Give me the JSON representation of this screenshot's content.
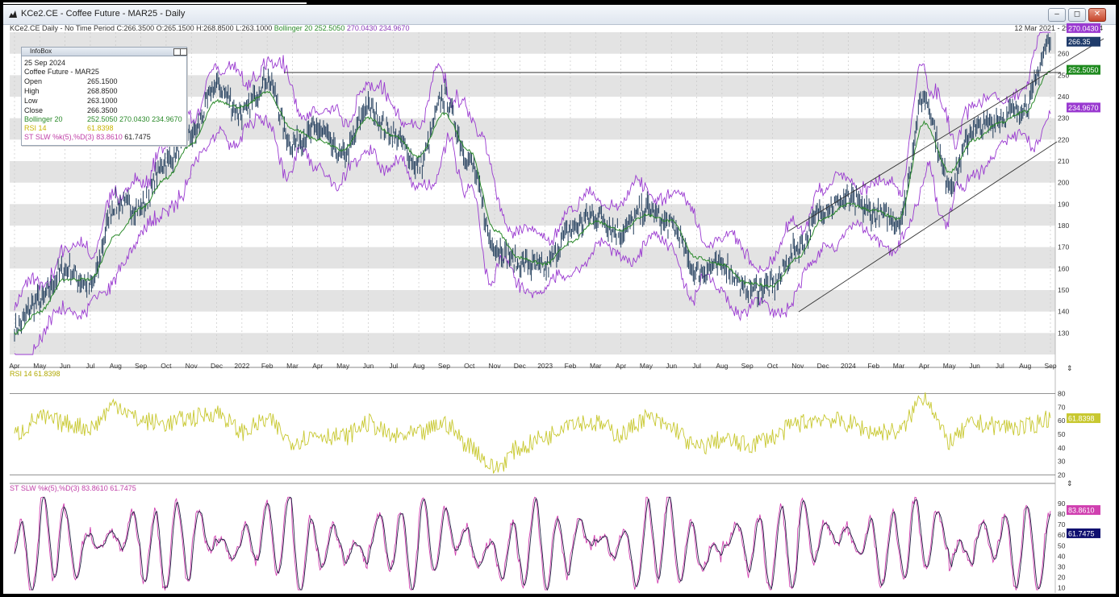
{
  "window": {
    "title": "KCe2.CE - Coffee Future - MAR25 - Daily",
    "buttons": {
      "minimize": "–",
      "restore": "◻",
      "close": "✕"
    }
  },
  "header": {
    "line_main": "KCe2.CE Daily  -  No Time Period   C:266.3500 O:265.1500 H:268.8500 L:263.1000",
    "bollinger_label": "Bollinger 20",
    "bollinger_mid": "252.5050",
    "bollinger_upper": "270.0430",
    "bollinger_lower": "234.9670",
    "date_range": "12 Mar 2021  -  25 Sep 2024"
  },
  "infobox": {
    "title": "InfoBox",
    "date": "25 Sep 2024",
    "instrument": "Coffee Future - MAR25",
    "rows": [
      {
        "label": "Open",
        "value": "265.1500"
      },
      {
        "label": "High",
        "value": "268.8500"
      },
      {
        "label": "Low",
        "value": "263.1000"
      },
      {
        "label": "Close",
        "value": "266.3500"
      }
    ],
    "bollinger": {
      "label": "Bollinger 20",
      "value": "252.5050  270.0430  234.9670"
    },
    "rsi": {
      "label": "RSI 14",
      "value": "61.8398"
    },
    "stoch": {
      "label": "ST SLW %k(5),%D(3)",
      "value": "83.8610",
      "value2": "61.7475"
    }
  },
  "price_badges": {
    "upper": "270.0430",
    "close": "266.35",
    "mid": "252.5050",
    "lower": "234.9670"
  },
  "rsi_panel": {
    "label": "RSI 14  61.8398",
    "badge": "61.8398"
  },
  "stoch_panel": {
    "label": "ST SLW %k(5),%D(3)  83.8610  61.7475",
    "badge_k": "83.8610",
    "badge_d": "61.7475"
  },
  "colors": {
    "price": "#1f3b5a",
    "bollinger_mid": "#2a8a2a",
    "bollinger_band": "#9a3ad0",
    "rsi": "#c8c830",
    "stoch_k": "#d040b0",
    "stoch_d": "#222244",
    "badge_close": "#1f3b6a",
    "badge_mid": "#1e8a1e",
    "badge_band": "#9a3ad0",
    "badge_rsi": "#c8c830",
    "badge_d": "#101070"
  },
  "chart_data": [
    {
      "type": "line",
      "title": "KCe2.CE - Coffee Future - MAR25 - Daily",
      "xlabel": "",
      "ylabel": "",
      "x": [
        "Apr",
        "May",
        "Jun",
        "Jul",
        "Aug",
        "Sep",
        "Oct",
        "Nov",
        "Dec",
        "2022",
        "Feb",
        "Mar",
        "Apr",
        "May",
        "Jun",
        "Jul",
        "Aug",
        "Sep",
        "Oct",
        "Nov",
        "Dec",
        "2023",
        "Feb",
        "Mar",
        "Apr",
        "May",
        "Jun",
        "Jul",
        "Aug",
        "Sep",
        "Oct",
        "Nov",
        "Dec",
        "2024",
        "Feb",
        "Mar",
        "Apr",
        "May",
        "Jun",
        "Jul",
        "Aug",
        "Sep"
      ],
      "series": [
        {
          "name": "Close",
          "values": [
            133,
            145,
            160,
            152,
            190,
            188,
            210,
            222,
            245,
            232,
            248,
            218,
            225,
            212,
            235,
            222,
            208,
            240,
            210,
            170,
            162,
            160,
            178,
            185,
            177,
            188,
            180,
            158,
            162,
            150,
            152,
            170,
            188,
            192,
            186,
            182,
            240,
            200,
            225,
            230,
            235,
            266
          ]
        },
        {
          "name": "Bollinger 20",
          "values": [
            130,
            140,
            155,
            155,
            175,
            188,
            202,
            218,
            238,
            235,
            242,
            225,
            220,
            215,
            230,
            222,
            212,
            232,
            215,
            178,
            165,
            162,
            172,
            182,
            178,
            185,
            182,
            165,
            162,
            153,
            152,
            165,
            183,
            190,
            187,
            183,
            228,
            205,
            220,
            228,
            233,
            252
          ]
        }
      ],
      "ylim": [
        120,
        270
      ],
      "yticks": [
        130,
        140,
        150,
        160,
        170,
        180,
        190,
        200,
        210,
        220,
        230,
        240,
        250,
        260
      ]
    },
    {
      "type": "line",
      "title": "RSI 14",
      "series": [
        {
          "name": "RSI 14",
          "values": [
            50,
            62,
            58,
            55,
            72,
            60,
            58,
            62,
            66,
            52,
            60,
            45,
            50,
            48,
            58,
            48,
            50,
            58,
            42,
            25,
            40,
            48,
            60,
            58,
            50,
            62,
            55,
            40,
            46,
            42,
            48,
            58,
            62,
            58,
            52,
            52,
            78,
            45,
            58,
            56,
            55,
            62
          ]
        }
      ],
      "ylim": [
        15,
        85
      ],
      "yticks": [
        20,
        30,
        40,
        50,
        60,
        70,
        80
      ]
    },
    {
      "type": "line",
      "title": "ST SLW %k(5),%D(3)",
      "series": [
        {
          "name": "%K",
          "values": [
            20,
            85,
            35,
            70,
            90,
            25,
            60,
            88,
            40,
            75,
            92,
            20,
            65,
            30,
            85,
            40,
            78,
            90,
            15,
            10,
            60,
            30,
            88,
            55,
            20,
            92,
            45,
            15,
            80,
            30,
            40,
            85,
            90,
            60,
            25,
            75,
            92,
            20,
            80,
            45,
            30,
            84
          ]
        },
        {
          "name": "%D",
          "values": [
            25,
            80,
            40,
            65,
            85,
            30,
            58,
            82,
            45,
            70,
            88,
            25,
            60,
            35,
            80,
            45,
            72,
            85,
            20,
            15,
            55,
            35,
            82,
            55,
            25,
            88,
            48,
            20,
            75,
            35,
            42,
            80,
            85,
            60,
            30,
            70,
            88,
            25,
            75,
            48,
            35,
            62
          ]
        }
      ],
      "ylim": [
        5,
        100
      ],
      "yticks": [
        10,
        20,
        30,
        40,
        50,
        60,
        70,
        80,
        90
      ]
    }
  ]
}
